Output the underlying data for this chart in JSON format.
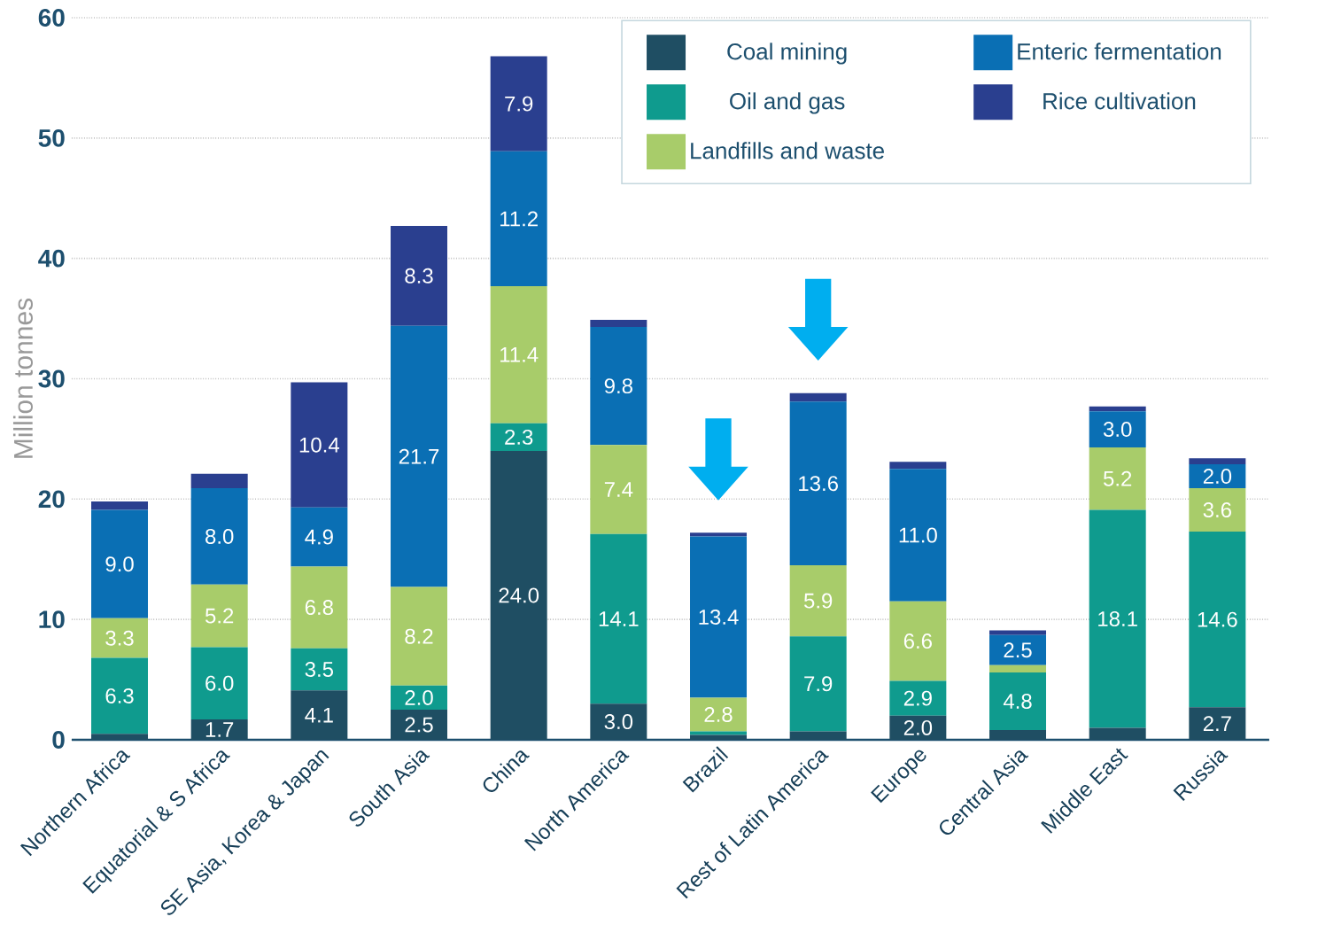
{
  "chart_data": {
    "type": "bar",
    "stacked": true,
    "ylabel": "Million tonnes",
    "categories": [
      "Northern Africa",
      "Equatorial & S Africa",
      "SE Asia, Korea & Japan",
      "South Asia",
      "China",
      "North America",
      "Brazil",
      "Rest of Latin America",
      "Europe",
      "Central Asia",
      "Middle East",
      "Russia"
    ],
    "series": [
      {
        "name": "Coal mining",
        "color": "#1f4e63",
        "values": [
          0.5,
          1.7,
          4.1,
          2.5,
          24.0,
          3.0,
          0.4,
          0.7,
          2.0,
          0.8,
          1.0,
          2.7
        ],
        "value_labels": [
          null,
          "1.7",
          "4.1",
          "2.5",
          "24.0",
          "3.0",
          null,
          null,
          "2.0",
          null,
          null,
          "2.7"
        ]
      },
      {
        "name": "Oil and gas",
        "color": "#0f9b8e",
        "values": [
          6.3,
          6.0,
          3.5,
          2.0,
          2.3,
          14.1,
          0.3,
          7.9,
          2.9,
          4.8,
          18.1,
          14.6
        ],
        "value_labels": [
          "6.3",
          "6.0",
          "3.5",
          "2.0",
          "2.3",
          "14.1",
          null,
          "7.9",
          "2.9",
          "4.8",
          "18.1",
          "14.6"
        ]
      },
      {
        "name": "Landfills and waste",
        "color": "#a8cc6a",
        "values": [
          3.3,
          5.2,
          6.8,
          8.2,
          11.4,
          7.4,
          2.8,
          5.9,
          6.6,
          0.6,
          5.2,
          3.6
        ],
        "value_labels": [
          "3.3",
          "5.2",
          "6.8",
          "8.2",
          "11.4",
          "7.4",
          "2.8",
          "5.9",
          "6.6",
          null,
          "5.2",
          "3.6"
        ]
      },
      {
        "name": "Enteric fermentation",
        "color": "#0a6fb4",
        "values": [
          9.0,
          8.0,
          4.9,
          21.7,
          11.2,
          9.8,
          13.4,
          13.6,
          11.0,
          2.5,
          3.0,
          2.0
        ],
        "value_labels": [
          "9.0",
          "8.0",
          "4.9",
          "21.7",
          "11.2",
          "9.8",
          "13.4",
          "13.6",
          "11.0",
          "2.5",
          "3.0",
          "2.0"
        ]
      },
      {
        "name": "Rice cultivation",
        "color": "#2a3f8f",
        "values": [
          0.7,
          1.2,
          10.4,
          8.3,
          7.9,
          0.6,
          0.3,
          0.7,
          0.6,
          0.4,
          0.4,
          0.5
        ],
        "value_labels": [
          null,
          null,
          "10.4",
          "8.3",
          "7.9",
          null,
          null,
          null,
          null,
          null,
          null,
          null
        ]
      }
    ],
    "ylim": [
      0,
      60
    ],
    "yticks": [
      0,
      10,
      20,
      30,
      40,
      50,
      60
    ],
    "grid": "y",
    "legend": "top right"
  }
}
